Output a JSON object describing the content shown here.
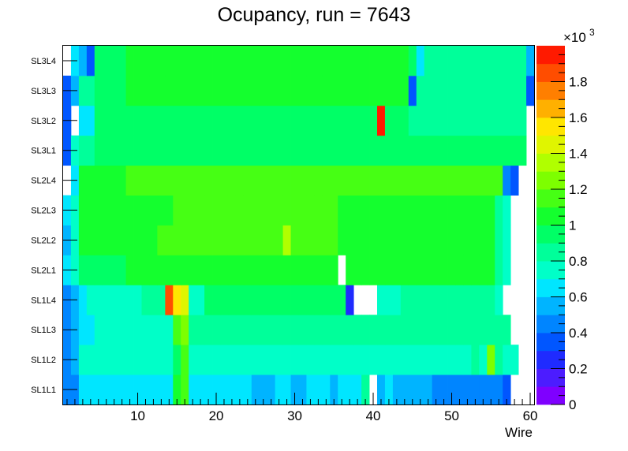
{
  "chart_data": {
    "type": "heatmap",
    "title": "Ocupancy, run = 7643",
    "xlabel": "Wire",
    "ylabel": "",
    "x_range": [
      0.5,
      60.5
    ],
    "x_ticks": [
      "10",
      "20",
      "30",
      "40",
      "50",
      "60"
    ],
    "y_categories": [
      "SL1L1",
      "SL1L2",
      "SL1L3",
      "SL1L4",
      "SL2L1",
      "SL2L2",
      "SL2L3",
      "SL2L4",
      "SL3L1",
      "SL3L2",
      "SL3L3",
      "SL3L4"
    ],
    "z_range": [
      0,
      2000
    ],
    "colorbar_ticks": [
      "0",
      "0.2",
      "0.4",
      "0.6",
      "0.8",
      "1",
      "1.2",
      "1.4",
      "1.6",
      "1.8"
    ],
    "colorbar_exponent": "×10",
    "colorbar_exponent_power": "3",
    "palette": [
      "#7f00ff",
      "#4c1cff",
      "#1f2bff",
      "#0056ff",
      "#0085ff",
      "#00b4ff",
      "#00e6ff",
      "#00ffc8",
      "#00ff9a",
      "#00ff66",
      "#14ff2e",
      "#46ff14",
      "#7dff00",
      "#b0ff00",
      "#e0f500",
      "#ffe600",
      "#ffb000",
      "#ff7f00",
      "#ff4d00",
      "#ff1a00"
    ],
    "z_values": [
      [
        400,
        450,
        600,
        600,
        600,
        600,
        600,
        600,
        650,
        650,
        650,
        650,
        650,
        650,
        1050,
        1100,
        650,
        650,
        650,
        650,
        650,
        650,
        650,
        650,
        550,
        550,
        550,
        600,
        600,
        500,
        550,
        650,
        650,
        650,
        550,
        650,
        650,
        650,
        850,
        0,
        550,
        650,
        500,
        500,
        500,
        500,
        500,
        400,
        400,
        400,
        400,
        400,
        400,
        400,
        400,
        400,
        300,
        0,
        0,
        0
      ],
      [
        400,
        550,
        700,
        700,
        700,
        700,
        700,
        700,
        750,
        750,
        750,
        750,
        750,
        750,
        950,
        1100,
        750,
        750,
        750,
        750,
        750,
        750,
        750,
        750,
        750,
        750,
        750,
        750,
        750,
        750,
        750,
        750,
        750,
        750,
        750,
        750,
        750,
        750,
        750,
        750,
        700,
        700,
        700,
        700,
        700,
        700,
        700,
        700,
        700,
        750,
        750,
        750,
        800,
        700,
        1200,
        800,
        750,
        750,
        0,
        0
      ],
      [
        450,
        500,
        650,
        650,
        750,
        750,
        750,
        750,
        750,
        750,
        750,
        750,
        750,
        750,
        1150,
        1200,
        850,
        850,
        850,
        850,
        850,
        850,
        850,
        850,
        850,
        850,
        850,
        850,
        850,
        850,
        850,
        850,
        850,
        850,
        850,
        850,
        850,
        850,
        850,
        850,
        850,
        850,
        850,
        850,
        850,
        850,
        850,
        850,
        850,
        850,
        850,
        850,
        850,
        850,
        850,
        850,
        850,
        0,
        0,
        0
      ],
      [
        450,
        550,
        650,
        700,
        750,
        750,
        750,
        750,
        750,
        750,
        800,
        800,
        800,
        1850,
        1550,
        1450,
        750,
        750,
        900,
        900,
        900,
        900,
        900,
        900,
        900,
        900,
        900,
        900,
        900,
        900,
        900,
        900,
        900,
        900,
        900,
        900,
        200,
        0,
        0,
        0,
        700,
        750,
        750,
        800,
        800,
        800,
        800,
        800,
        800,
        800,
        800,
        800,
        800,
        800,
        800,
        700,
        0,
        0,
        0,
        0
      ],
      [
        650,
        700,
        900,
        900,
        900,
        900,
        900,
        900,
        1050,
        1050,
        1050,
        1050,
        1050,
        1050,
        1050,
        1050,
        1050,
        1050,
        1050,
        1050,
        1050,
        1050,
        1050,
        1050,
        1050,
        1050,
        1050,
        1050,
        1050,
        1050,
        1050,
        1050,
        1050,
        1050,
        1050,
        0,
        1050,
        1050,
        1050,
        1050,
        1050,
        1050,
        1050,
        1050,
        1050,
        1050,
        1050,
        1050,
        1050,
        1050,
        1050,
        1050,
        1050,
        1050,
        1050,
        800,
        700,
        0,
        0,
        0
      ],
      [
        550,
        750,
        1000,
        1000,
        1050,
        1050,
        1050,
        1050,
        1050,
        1050,
        1050,
        1050,
        1100,
        1100,
        1100,
        1100,
        1100,
        1100,
        1100,
        1100,
        1100,
        1100,
        1100,
        1100,
        1100,
        1100,
        1100,
        1100,
        1350,
        1150,
        1150,
        1150,
        1150,
        1150,
        1150,
        1050,
        1050,
        1050,
        1050,
        1050,
        1050,
        1050,
        1050,
        1050,
        1050,
        1050,
        1050,
        1050,
        1050,
        1050,
        1050,
        1050,
        1050,
        1050,
        1050,
        800,
        700,
        0,
        0,
        0
      ],
      [
        600,
        700,
        1000,
        1000,
        1000,
        1000,
        1000,
        1000,
        1050,
        1050,
        1050,
        1050,
        1050,
        1050,
        1100,
        1100,
        1100,
        1100,
        1100,
        1100,
        1100,
        1100,
        1100,
        1100,
        1100,
        1100,
        1100,
        1100,
        1100,
        1100,
        1100,
        1100,
        1100,
        1100,
        1100,
        1050,
        1050,
        1050,
        1050,
        1050,
        1050,
        1050,
        1050,
        1050,
        1050,
        1050,
        1050,
        1050,
        1050,
        1050,
        1050,
        1050,
        1050,
        1050,
        1050,
        850,
        700,
        0,
        0,
        0
      ],
      [
        0,
        600,
        1050,
        1050,
        1050,
        1050,
        1050,
        1050,
        1150,
        1150,
        1150,
        1150,
        1150,
        1150,
        1150,
        1150,
        1150,
        1150,
        1150,
        1150,
        1150,
        1150,
        1150,
        1150,
        1150,
        1150,
        1150,
        1150,
        1150,
        1150,
        1150,
        1150,
        1150,
        1150,
        1150,
        1150,
        1150,
        1150,
        1150,
        1150,
        1150,
        1150,
        1150,
        1150,
        1150,
        1150,
        1150,
        1150,
        1150,
        1150,
        1150,
        1150,
        1150,
        1150,
        1150,
        1150,
        400,
        300,
        0,
        0
      ],
      [
        300,
        700,
        850,
        850,
        900,
        900,
        900,
        900,
        900,
        900,
        900,
        900,
        900,
        900,
        900,
        900,
        900,
        900,
        900,
        900,
        900,
        900,
        900,
        900,
        900,
        900,
        900,
        900,
        900,
        900,
        900,
        900,
        900,
        900,
        900,
        900,
        900,
        900,
        900,
        900,
        900,
        900,
        900,
        900,
        900,
        900,
        900,
        900,
        900,
        900,
        900,
        900,
        900,
        900,
        900,
        900,
        900,
        900,
        900,
        0
      ],
      [
        300,
        0,
        600,
        650,
        950,
        950,
        950,
        950,
        950,
        950,
        950,
        950,
        950,
        950,
        950,
        950,
        950,
        950,
        950,
        950,
        950,
        950,
        950,
        950,
        950,
        950,
        950,
        950,
        950,
        950,
        950,
        950,
        950,
        950,
        950,
        950,
        950,
        950,
        950,
        950,
        1950,
        950,
        950,
        950,
        800,
        800,
        800,
        800,
        800,
        800,
        800,
        800,
        800,
        800,
        800,
        800,
        800,
        800,
        800,
        0
      ],
      [
        350,
        500,
        850,
        850,
        950,
        950,
        950,
        950,
        1000,
        1000,
        1000,
        1000,
        1000,
        1000,
        1000,
        1000,
        1000,
        1000,
        1000,
        1000,
        1000,
        1000,
        1000,
        1000,
        1000,
        1000,
        1000,
        1000,
        1000,
        1000,
        1000,
        1000,
        1000,
        1000,
        1000,
        1000,
        1000,
        1000,
        1000,
        1000,
        1000,
        1000,
        1000,
        1000,
        300,
        800,
        800,
        800,
        800,
        800,
        800,
        800,
        800,
        800,
        800,
        800,
        800,
        800,
        800,
        300
      ],
      [
        0,
        650,
        550,
        350,
        950,
        950,
        950,
        950,
        1000,
        1000,
        1000,
        1000,
        1000,
        1000,
        1000,
        1000,
        1000,
        1000,
        1000,
        1000,
        1000,
        1000,
        1000,
        1000,
        1000,
        1000,
        1000,
        1000,
        1000,
        1000,
        1000,
        1000,
        1000,
        1000,
        1000,
        1000,
        1000,
        1000,
        1000,
        1000,
        1000,
        1000,
        1000,
        1000,
        900,
        650,
        850,
        850,
        850,
        850,
        850,
        850,
        850,
        850,
        850,
        850,
        850,
        850,
        850,
        550
      ]
    ]
  }
}
